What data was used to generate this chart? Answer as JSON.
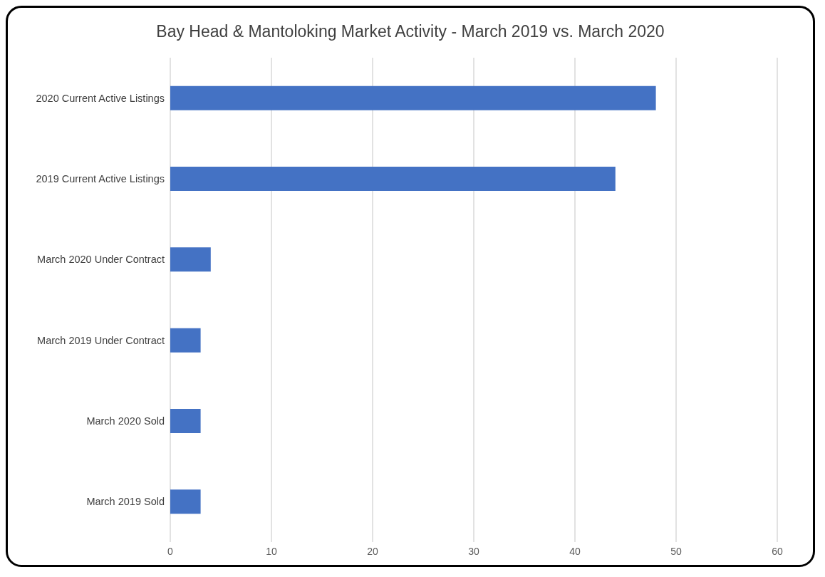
{
  "chart_data": {
    "type": "bar",
    "orientation": "horizontal",
    "title": "Bay Head & Mantoloking Market Activity - March 2019 vs. March 2020",
    "categories": [
      "2020 Current Active Listings",
      "2019 Current Active Listings",
      "March 2020 Under Contract",
      "March 2019 Under Contract",
      "March 2020 Sold",
      "March 2019 Sold"
    ],
    "values": [
      48,
      44,
      4,
      3,
      3,
      3
    ],
    "color": "#4472c4",
    "xlim": [
      0,
      60
    ],
    "xticks": [
      0,
      10,
      20,
      30,
      40,
      50,
      60
    ],
    "grid": "x"
  }
}
